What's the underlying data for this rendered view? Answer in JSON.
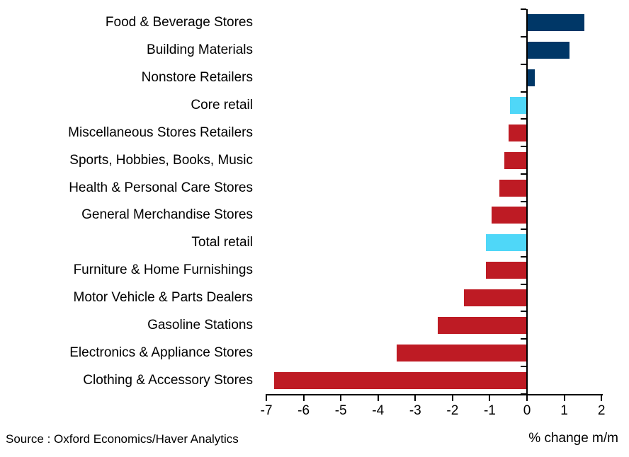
{
  "chart_data": {
    "type": "bar",
    "orientation": "horizontal",
    "title": "",
    "xlabel": "% change m/m",
    "source": "Source : Oxford Economics/Haver Analytics",
    "xlim": [
      -7,
      2
    ],
    "xticks": [
      -7,
      -6,
      -5,
      -4,
      -3,
      -2,
      -1,
      0,
      1,
      2
    ],
    "grid": false,
    "legend": null,
    "categories": [
      "Food & Beverage Stores",
      "Building Materials",
      "Nonstore Retailers",
      "Core retail",
      "Miscellaneous Stores Retailers",
      "Sports, Hobbies, Books, Music",
      "Health & Personal Care Stores",
      "General Merchandise Stores",
      "Total retail",
      "Furniture & Home Furnishings",
      "Motor Vehicle & Parts Dealers",
      "Gasoline Stations",
      "Electronics & Appliance Stores",
      "Clothing & Accessory Stores"
    ],
    "values": [
      1.55,
      1.15,
      0.2,
      -0.45,
      -0.5,
      -0.6,
      -0.75,
      -0.95,
      -1.1,
      -1.1,
      -1.7,
      -2.4,
      -3.5,
      -6.8
    ],
    "bar_colors": [
      "#003767",
      "#003767",
      "#003767",
      "#4FD7F8",
      "#BE1B24",
      "#BE1B24",
      "#BE1B24",
      "#BE1B24",
      "#4FD7F8",
      "#BE1B24",
      "#BE1B24",
      "#BE1B24",
      "#BE1B24",
      "#BE1B24"
    ],
    "palette": {
      "positive": "#003767",
      "negative": "#BE1B24",
      "aggregate_highlight": "#4FD7F8",
      "axis": "#000000",
      "background": "#FFFFFF"
    }
  }
}
